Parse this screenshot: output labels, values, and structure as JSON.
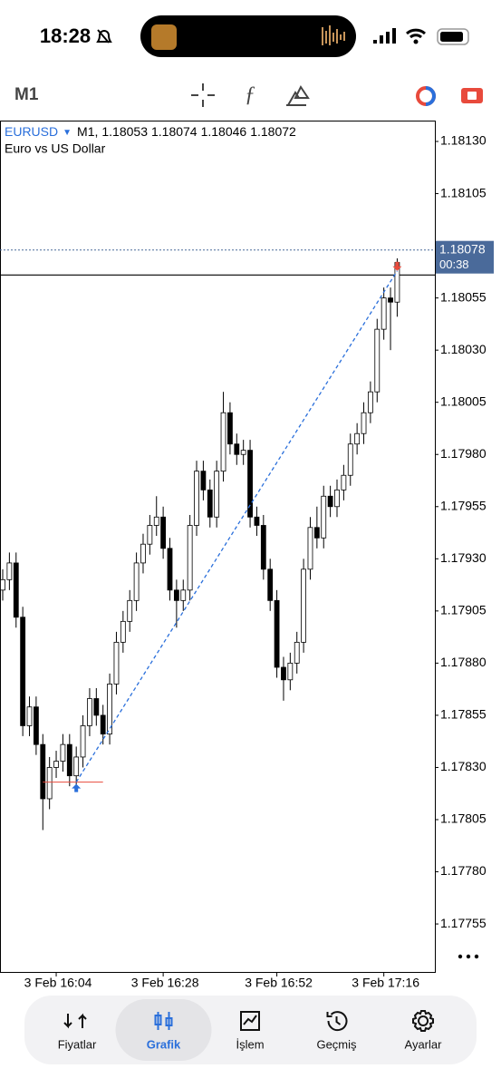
{
  "status_bar": {
    "time": "18:28"
  },
  "toolbar": {
    "timeframe": "M1"
  },
  "chart_data": {
    "type": "candlestick",
    "symbol": "EURUSD",
    "header_timeframe": "M1,",
    "subtitle": "Euro vs US Dollar",
    "categories": [
      null,
      null,
      null,
      null,
      null,
      null,
      null,
      null,
      "3 Feb 16:04",
      null,
      null,
      null,
      null,
      null,
      null,
      null,
      null,
      null,
      null,
      null,
      null,
      null,
      null,
      null,
      "3 Feb 16:28",
      null,
      null,
      null,
      null,
      null,
      null,
      null,
      null,
      null,
      null,
      null,
      null,
      null,
      null,
      null,
      null,
      "3 Feb 16:52",
      null,
      null,
      null,
      null,
      null,
      null,
      null,
      null,
      null,
      null,
      null,
      null,
      null,
      null,
      null,
      "3 Feb 17:16",
      null,
      null
    ],
    "open": [
      1.17915,
      1.1792,
      1.17928,
      1.17902,
      1.1785,
      1.17859,
      1.17841,
      1.17815,
      1.1783,
      1.17833,
      1.17841,
      1.17826,
      1.17835,
      1.1785,
      1.17863,
      1.17855,
      1.17846,
      1.1787,
      1.1789,
      1.179,
      1.1791,
      1.17928,
      1.17937,
      1.17946,
      1.1795,
      1.17935,
      1.17915,
      1.1791,
      1.17915,
      1.17946,
      1.17972,
      1.17963,
      1.1795,
      1.17972,
      1.18,
      1.17985,
      1.1798,
      1.17982,
      1.1795,
      1.17946,
      1.17925,
      1.1791,
      1.17878,
      1.17872,
      1.1788,
      1.1789,
      1.17925,
      1.17945,
      1.1794,
      1.1796,
      1.17955,
      1.17963,
      1.1797,
      1.17985,
      1.1799,
      1.18,
      1.1801,
      1.1804,
      1.18055,
      1.18053
    ],
    "high": [
      1.17925,
      1.17933,
      1.17933,
      1.17907,
      1.17864,
      1.17864,
      1.17846,
      1.17835,
      1.17838,
      1.17846,
      1.17846,
      1.1784,
      1.17855,
      1.17868,
      1.17868,
      1.1786,
      1.17875,
      1.17895,
      1.17905,
      1.17915,
      1.17933,
      1.17942,
      1.17951,
      1.1796,
      1.17955,
      1.1794,
      1.1792,
      1.1792,
      1.17951,
      1.17977,
      1.17977,
      1.17968,
      1.17977,
      1.1801,
      1.18005,
      1.1799,
      1.17987,
      1.17987,
      1.17955,
      1.17951,
      1.1793,
      1.17915,
      1.17883,
      1.17885,
      1.17895,
      1.1793,
      1.1795,
      1.17955,
      1.17965,
      1.17965,
      1.17968,
      1.17975,
      1.1799,
      1.17995,
      1.18005,
      1.18015,
      1.18045,
      1.1806,
      1.1806,
      1.18074
    ],
    "low": [
      1.1791,
      1.17915,
      1.17897,
      1.17845,
      1.17845,
      1.17836,
      1.178,
      1.1781,
      1.17825,
      1.17828,
      1.17821,
      1.17821,
      1.1783,
      1.17845,
      1.1785,
      1.17841,
      1.17841,
      1.17865,
      1.17885,
      1.17895,
      1.17905,
      1.17923,
      1.17932,
      1.17941,
      1.1793,
      1.1791,
      1.17897,
      1.17905,
      1.1791,
      1.17941,
      1.17958,
      1.17945,
      1.17945,
      1.17967,
      1.1798,
      1.17975,
      1.17975,
      1.17945,
      1.17941,
      1.1792,
      1.17905,
      1.17873,
      1.17862,
      1.17867,
      1.17875,
      1.17885,
      1.1792,
      1.17935,
      1.17935,
      1.1795,
      1.1795,
      1.17958,
      1.17965,
      1.1798,
      1.17985,
      1.17995,
      1.18005,
      1.18035,
      1.1803,
      1.18046
    ],
    "close": [
      1.1792,
      1.17928,
      1.17902,
      1.1785,
      1.17859,
      1.17841,
      1.17815,
      1.1783,
      1.17833,
      1.17841,
      1.17826,
      1.17835,
      1.1785,
      1.17863,
      1.17855,
      1.17846,
      1.1787,
      1.1789,
      1.179,
      1.1791,
      1.17928,
      1.17937,
      1.17946,
      1.1795,
      1.17935,
      1.17915,
      1.1791,
      1.17915,
      1.17946,
      1.17972,
      1.17963,
      1.1795,
      1.17972,
      1.18,
      1.17985,
      1.1798,
      1.17982,
      1.1795,
      1.17946,
      1.17925,
      1.1791,
      1.17878,
      1.17872,
      1.1788,
      1.1789,
      1.17925,
      1.17945,
      1.1794,
      1.1796,
      1.17955,
      1.17963,
      1.1797,
      1.17985,
      1.1799,
      1.18,
      1.1801,
      1.1804,
      1.18055,
      1.18053,
      1.18072
    ],
    "up_color": "#ffffff",
    "down_color": "#000000",
    "ylim": [
      1.17732,
      1.1814
    ],
    "yticks": [
      {
        "value": 1.1813,
        "label": "1.18130"
      },
      1.18105,
      1.18055,
      {
        "value": 1.1803,
        "label": "1.18030"
      },
      1.18005,
      {
        "value": 1.1798,
        "label": "1.17980"
      },
      1.17955,
      {
        "value": 1.1793,
        "label": "1.17930"
      },
      1.17905,
      {
        "value": 1.1788,
        "label": "1.17880"
      },
      1.17855,
      {
        "value": 1.1783,
        "label": "1.17830"
      },
      1.17805,
      {
        "value": 1.1778,
        "label": "1.17780"
      },
      1.17755
    ],
    "bid_price": 1.18078,
    "countdown": "00:38",
    "level_line": 1.18066,
    "trade": {
      "open_price": 1.17823,
      "close_price": 1.18068,
      "color": "#2a6fdb"
    }
  },
  "tab_bar": {
    "tabs": [
      "Fiyatlar",
      "Grafik",
      "İşlem",
      "Geçmiş",
      "Ayarlar"
    ],
    "active": 1
  }
}
